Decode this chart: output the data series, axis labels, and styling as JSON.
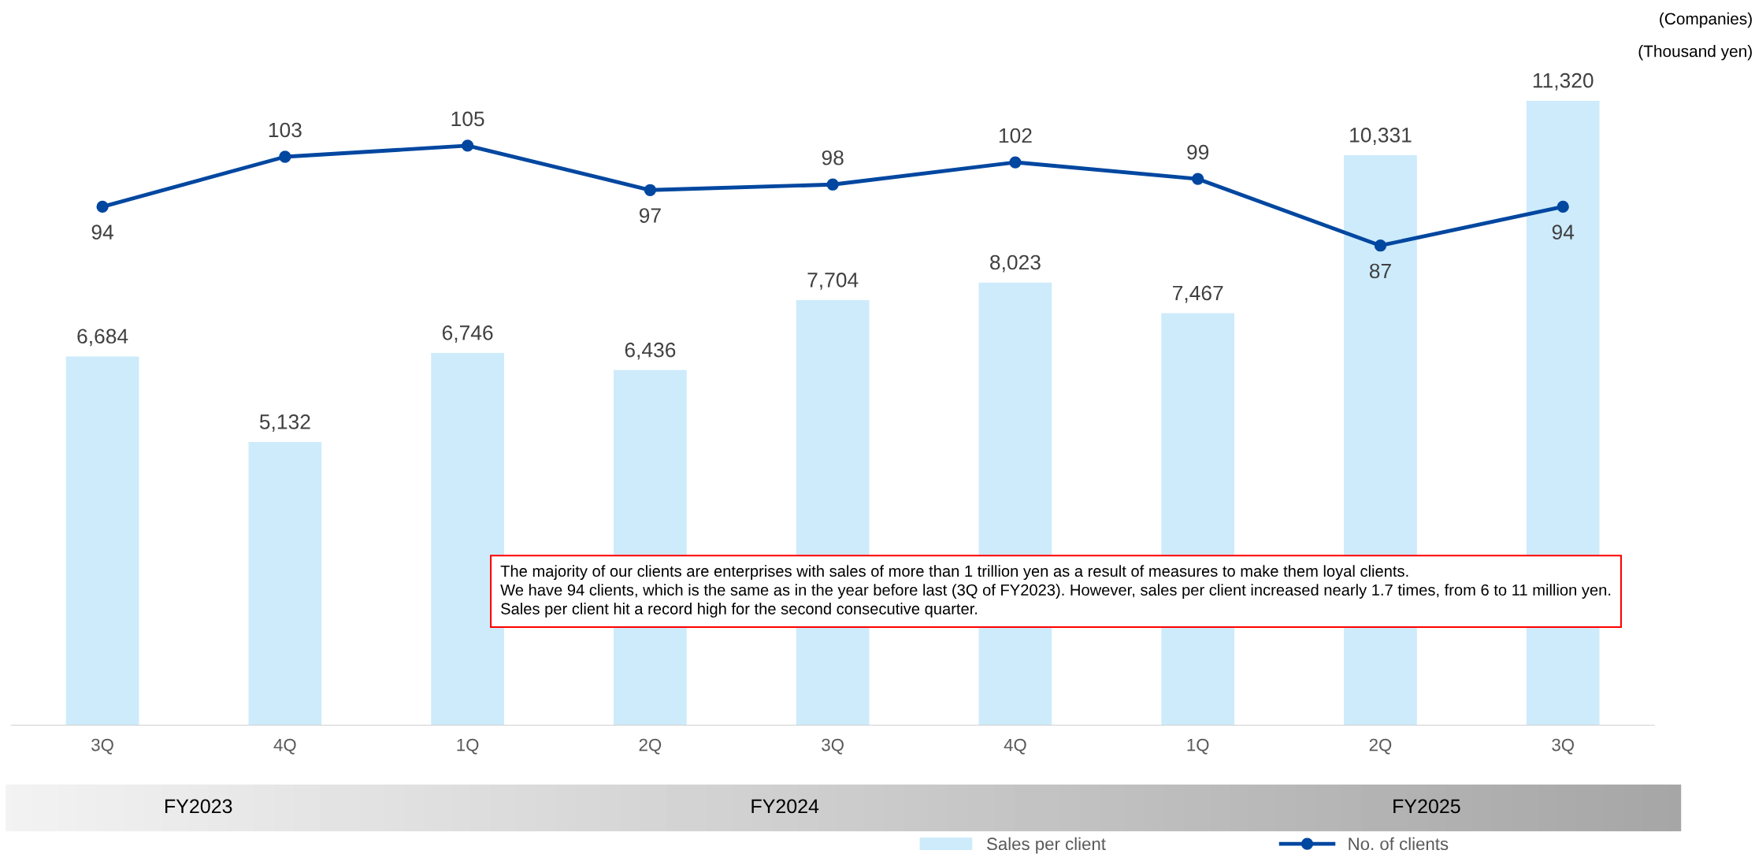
{
  "chart_data": {
    "type": "bar",
    "categories": [
      "3Q",
      "4Q",
      "1Q",
      "2Q",
      "3Q",
      "4Q",
      "1Q",
      "2Q",
      "3Q"
    ],
    "ylabel": "(Thousand yen)",
    "y2label": "(Companies)",
    "series": [
      {
        "name": "Sales per client",
        "color": "#cdebfb",
        "values": [
          6684,
          5132,
          6746,
          6436,
          7704,
          8023,
          7467,
          10331,
          11320
        ],
        "value_labels": [
          "6,684",
          "5,132",
          "6,746",
          "6,436",
          "7,704",
          "8,023",
          "7,467",
          "10,331",
          "11,320"
        ]
      },
      {
        "name": "No. of clients",
        "type": "line",
        "axis": "y2",
        "color": "#0047a0",
        "marker": "circle",
        "line_style": "solid",
        "values": [
          94,
          103,
          105,
          97,
          98,
          102,
          99,
          87,
          94
        ]
      }
    ],
    "data_labels": true,
    "legend": "bottom",
    "tick_labels": "x",
    "annotations": [
      "FY2023",
      "FY2024",
      "FY2025",
      "The majority of our clients are enterprises with sales of more than 1 trillion yen as a result of measures to make them loyal clients.",
      "We have 94 clients, which is the same as in the year before last (3Q of FY2023). However, sales per client increased nearly 1.7 times, from 6 to 11 million yen.",
      "Sales per client hit a record high for the second consecutive quarter."
    ]
  }
}
